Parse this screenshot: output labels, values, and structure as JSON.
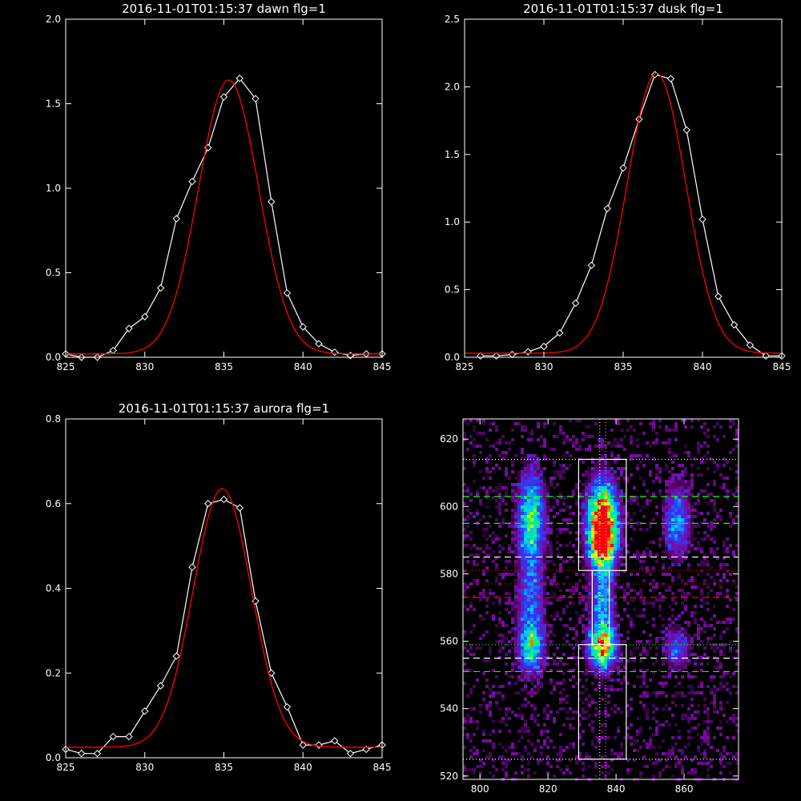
{
  "chart_data": [
    {
      "type": "line",
      "title": "2016-11-01T01:15:37 dawn flg=1",
      "xlim": [
        825,
        845
      ],
      "ylim": [
        0,
        2.0
      ],
      "xticks": [
        "825",
        "830",
        "835",
        "840",
        "845"
      ],
      "yticks": [
        "0.0",
        "0.5",
        "1.0",
        "1.5",
        "2.0"
      ],
      "xtick_values": [
        825,
        830,
        835,
        840,
        845
      ],
      "ytick_values": [
        0,
        0.5,
        1.0,
        1.5,
        2.0
      ],
      "series": [
        {
          "style": "line-diamond",
          "color": "#ffffff",
          "x": [
            825,
            826,
            827,
            828,
            829,
            830,
            831,
            832,
            833,
            834,
            835,
            836,
            837,
            838,
            839,
            840,
            841,
            842,
            843,
            844,
            845
          ],
          "y": [
            0.02,
            0.0,
            0.0,
            0.04,
            0.17,
            0.24,
            0.41,
            0.82,
            1.04,
            1.24,
            1.54,
            1.65,
            1.53,
            0.92,
            0.38,
            0.18,
            0.08,
            0.03,
            0.01,
            0.02,
            0.02
          ]
        },
        {
          "style": "gaussian",
          "color": "#ff0000",
          "amplitude": 1.62,
          "center": 835.3,
          "sigma": 1.9,
          "offset": 0.02
        }
      ]
    },
    {
      "type": "line",
      "title": "2016-11-01T01:15:37 dusk flg=1",
      "xlim": [
        825,
        845
      ],
      "ylim": [
        0,
        2.5
      ],
      "xticks": [
        "825",
        "830",
        "835",
        "840",
        "845"
      ],
      "yticks": [
        "0.0",
        "0.5",
        "1.0",
        "1.5",
        "2.0",
        "2.5"
      ],
      "xtick_values": [
        825,
        830,
        835,
        840,
        845
      ],
      "ytick_values": [
        0,
        0.5,
        1.0,
        1.5,
        2.0,
        2.5
      ],
      "series": [
        {
          "style": "line-diamond",
          "color": "#ffffff",
          "x": [
            826,
            827,
            828,
            829,
            830,
            831,
            832,
            833,
            834,
            835,
            836,
            837,
            838,
            839,
            840,
            841,
            842,
            843,
            844,
            845
          ],
          "y": [
            0.01,
            0.01,
            0.02,
            0.04,
            0.08,
            0.18,
            0.4,
            0.68,
            1.1,
            1.4,
            1.76,
            2.09,
            2.06,
            1.68,
            1.02,
            0.45,
            0.24,
            0.09,
            0.01,
            0.01
          ]
        },
        {
          "style": "gaussian",
          "color": "#ff0000",
          "amplitude": 2.07,
          "center": 837.1,
          "sigma": 1.85,
          "offset": 0.03
        }
      ]
    },
    {
      "type": "line",
      "title": "2016-11-01T01:15:37 aurora flg=1",
      "xlim": [
        825,
        845
      ],
      "ylim": [
        0,
        0.8
      ],
      "xticks": [
        "825",
        "830",
        "835",
        "840",
        "845"
      ],
      "yticks": [
        "0.0",
        "0.2",
        "0.4",
        "0.6",
        "0.8"
      ],
      "xtick_values": [
        825,
        830,
        835,
        840,
        845
      ],
      "ytick_values": [
        0,
        0.2,
        0.4,
        0.6,
        0.8
      ],
      "series": [
        {
          "style": "line-diamond",
          "color": "#ffffff",
          "x": [
            825,
            826,
            827,
            828,
            829,
            830,
            831,
            832,
            833,
            834,
            835,
            836,
            837,
            838,
            839,
            840,
            841,
            842,
            843,
            844,
            845
          ],
          "y": [
            0.02,
            0.01,
            0.01,
            0.05,
            0.05,
            0.11,
            0.17,
            0.24,
            0.45,
            0.6,
            0.61,
            0.59,
            0.37,
            0.2,
            0.12,
            0.03,
            0.03,
            0.04,
            0.01,
            0.02,
            0.03
          ]
        },
        {
          "style": "gaussian",
          "color": "#ff0000",
          "amplitude": 0.61,
          "center": 834.9,
          "sigma": 1.85,
          "offset": 0.025
        }
      ]
    },
    {
      "type": "heatmap",
      "title": "",
      "xlim": [
        795,
        876
      ],
      "ylim": [
        519,
        626
      ],
      "xticks": [
        "800",
        "820",
        "840",
        "860"
      ],
      "yticks": [
        "520",
        "540",
        "560",
        "580",
        "600",
        "620"
      ],
      "xtick_values": [
        800,
        820,
        840,
        860
      ],
      "ytick_values": [
        520,
        540,
        560,
        580,
        600,
        620
      ],
      "colormap": [
        "#000000",
        "#7a0aa0",
        "#2b3cff",
        "#00ccff",
        "#00ff60",
        "#ffff00",
        "#ff0000"
      ],
      "hotspots": [
        {
          "x": 815,
          "y": 596,
          "sx": 2.5,
          "sy": 9,
          "amp": 0.65
        },
        {
          "x": 815,
          "y": 558,
          "sx": 2.5,
          "sy": 5,
          "amp": 0.55
        },
        {
          "x": 815,
          "y": 572,
          "sx": 2.5,
          "sy": 8,
          "amp": 0.35
        },
        {
          "x": 836,
          "y": 597,
          "sx": 2.8,
          "sy": 7,
          "amp": 1.0
        },
        {
          "x": 836,
          "y": 589,
          "sx": 2.8,
          "sy": 5,
          "amp": 0.7
        },
        {
          "x": 836,
          "y": 558,
          "sx": 2.6,
          "sy": 4,
          "amp": 0.85
        },
        {
          "x": 836,
          "y": 571,
          "sx": 2.2,
          "sy": 9,
          "amp": 0.45
        },
        {
          "x": 858,
          "y": 596,
          "sx": 2.5,
          "sy": 7,
          "amp": 0.4
        },
        {
          "x": 858,
          "y": 558,
          "sx": 2.5,
          "sy": 4,
          "amp": 0.3
        }
      ],
      "hlines": [
        {
          "y": 614,
          "color": "#ffffff",
          "dash": "dotted"
        },
        {
          "y": 603,
          "color": "#00ff00",
          "dash": "dashed"
        },
        {
          "y": 595,
          "color": "#00ff00",
          "dash": "dashed"
        },
        {
          "y": 585,
          "color": "#ffffff",
          "dash": "dashed"
        },
        {
          "y": 581,
          "color": "#ff0000",
          "dash": "dotted"
        },
        {
          "y": 577,
          "color": "#ff0000",
          "dash": "dotted"
        },
        {
          "y": 573,
          "color": "#ff0000",
          "dash": "dashed"
        },
        {
          "y": 559,
          "color": "#00ff00",
          "dash": "dotted"
        },
        {
          "y": 555,
          "color": "#ffffff",
          "dash": "dashed"
        },
        {
          "y": 551,
          "color": "#00ff00",
          "dash": "dashed"
        },
        {
          "y": 525,
          "color": "#ffffff",
          "dash": "dotted"
        }
      ],
      "vlines": [
        {
          "x": 835.2,
          "color": "#ffffff",
          "dash": "dotted"
        },
        {
          "x": 837.0,
          "color": "#ff66ff",
          "dash": "dotted"
        }
      ],
      "boxes": [
        {
          "x0": 829,
          "x1": 843,
          "y0": 581,
          "y1": 614
        },
        {
          "x0": 829,
          "x1": 843,
          "y0": 525,
          "y1": 559
        },
        {
          "x0": 833,
          "x1": 838,
          "y0": 559,
          "y1": 581
        }
      ]
    }
  ]
}
